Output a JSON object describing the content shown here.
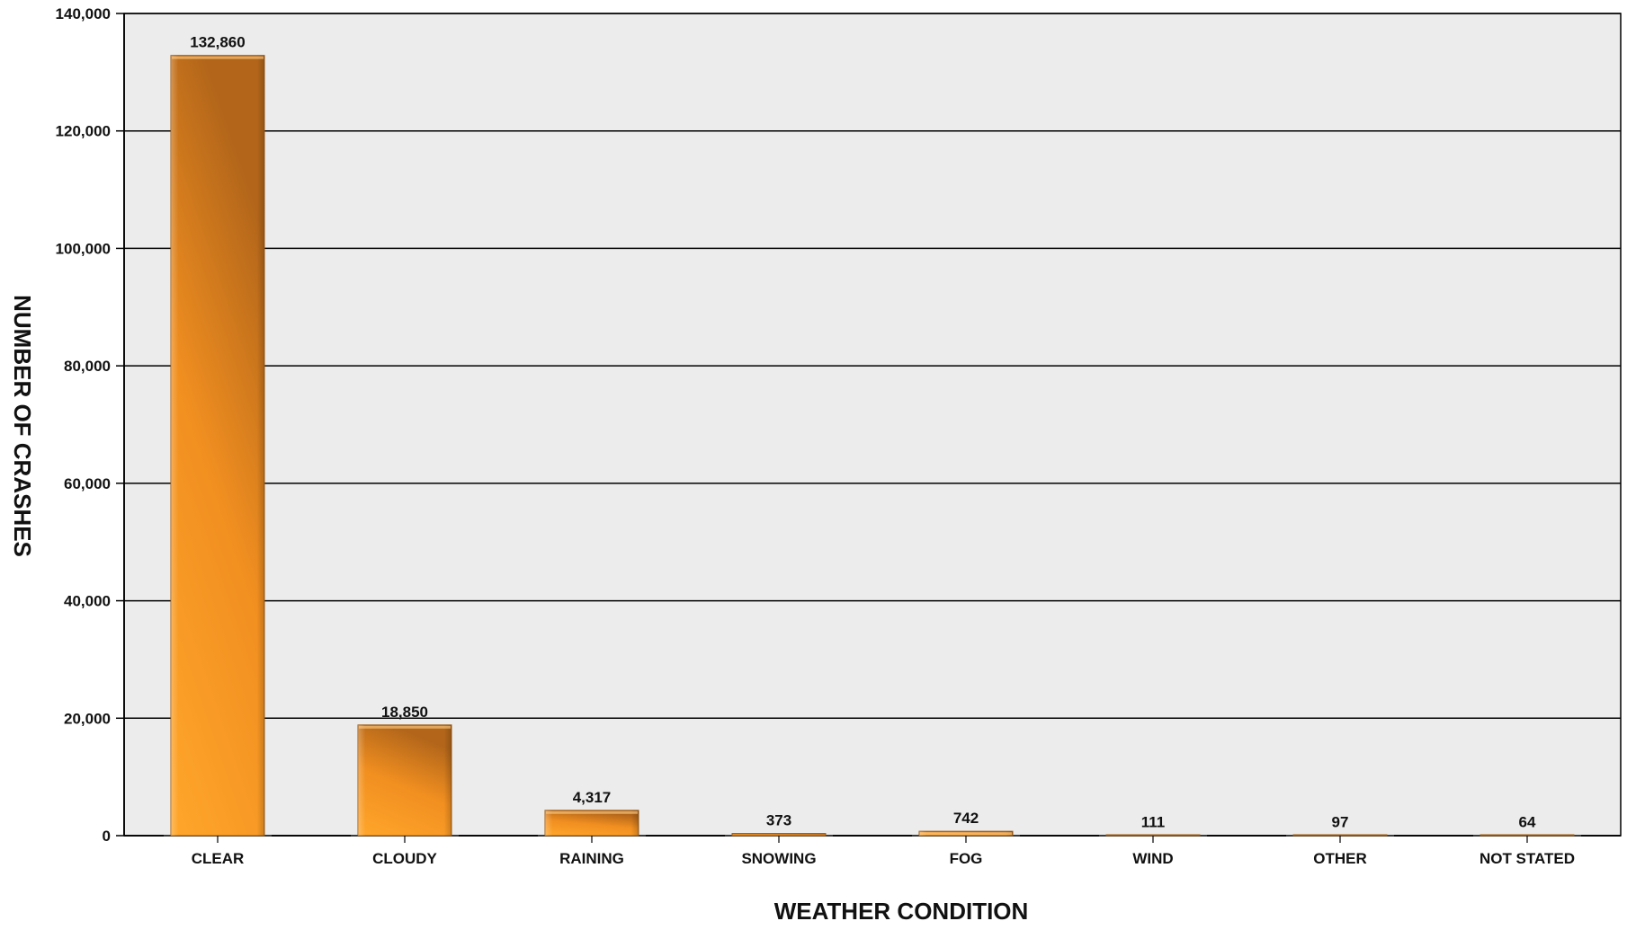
{
  "chart_data": {
    "type": "bar",
    "title": "",
    "xlabel": "WEATHER CONDITION",
    "ylabel": "NUMBER OF CRASHES",
    "categories": [
      "CLEAR",
      "CLOUDY",
      "RAINING",
      "SNOWING",
      "FOG",
      "WIND",
      "OTHER",
      "NOT STATED"
    ],
    "values": [
      132860,
      18850,
      4317,
      373,
      742,
      111,
      97,
      64
    ],
    "value_labels": [
      "132,860",
      "18,850",
      "4,317",
      "373",
      "742",
      "111",
      "97",
      "64"
    ],
    "ylim": [
      0,
      140000
    ],
    "yticks": [
      0,
      20000,
      40000,
      60000,
      80000,
      100000,
      120000,
      140000
    ],
    "ytick_labels": [
      "0",
      "20,000",
      "40,000",
      "60,000",
      "80,000",
      "100,000",
      "120,000",
      "140,000"
    ],
    "grid": true,
    "legend": "none",
    "colors": {
      "plot_background": "#ececec",
      "bar_light": "#ffa62b",
      "bar_mid": "#ee8e1f",
      "bar_dark": "#b3661a",
      "gridline": "#000000"
    }
  }
}
